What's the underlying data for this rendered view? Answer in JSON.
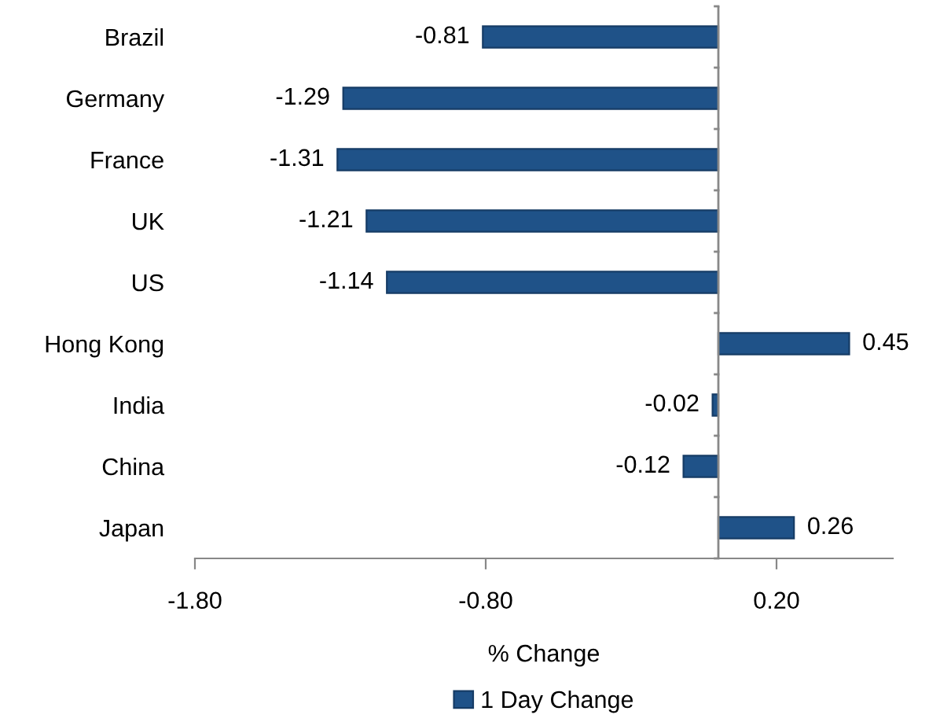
{
  "chart_data": {
    "type": "bar",
    "orientation": "horizontal",
    "xlabel": "% Change",
    "categories": [
      "Brazil",
      "Germany",
      "France",
      "UK",
      "US",
      "Hong Kong",
      "India",
      "China",
      "Japan"
    ],
    "series": [
      {
        "name": "1 Day Change",
        "color": "#1f5288",
        "values": [
          -0.81,
          -1.29,
          -1.31,
          -1.21,
          -1.14,
          0.45,
          -0.02,
          -0.12,
          0.26
        ]
      }
    ],
    "xlim": [
      -1.8,
      0.6
    ],
    "xticks": [
      {
        "value": -1.8,
        "label": "-1.80"
      },
      {
        "value": -0.8,
        "label": "-0.80"
      },
      {
        "value": 0.2,
        "label": "0.20"
      }
    ],
    "data_labels": true,
    "legend": "bottom",
    "grid": false
  }
}
